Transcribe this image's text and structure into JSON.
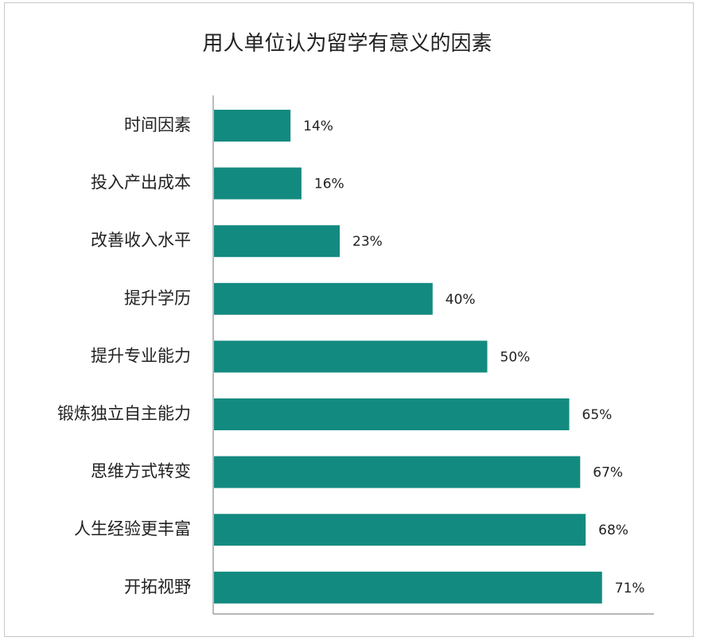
{
  "chart_data": {
    "type": "bar",
    "orientation": "horizontal",
    "title": "用人单位认为留学有意义的因素",
    "categories": [
      "时间因素",
      "投入产出成本",
      "改善收入水平",
      "提升学历",
      "提升专业能力",
      "锻炼独立自主能力",
      "思维方式转变",
      "人生经验更丰富",
      "开拓视野"
    ],
    "values": [
      14,
      16,
      23,
      40,
      50,
      65,
      67,
      68,
      71
    ],
    "value_labels": [
      "14%",
      "16%",
      "23%",
      "40%",
      "50%",
      "65%",
      "67%",
      "68%",
      "71%"
    ],
    "unit": "%",
    "xlabel": "",
    "ylabel": "",
    "grid": false,
    "bar_color": "#138a80"
  }
}
